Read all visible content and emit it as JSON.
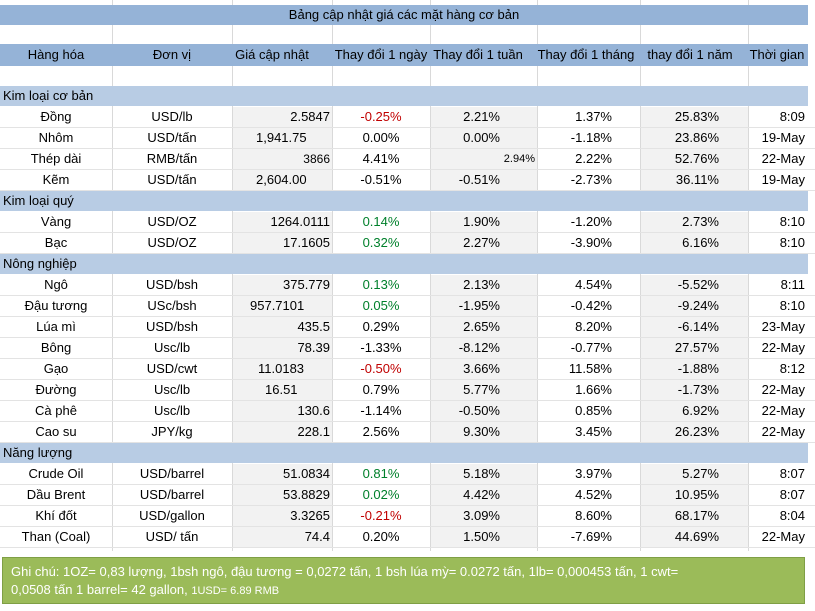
{
  "title": "Bảng cập nhật giá các mặt hàng cơ bản",
  "headers": [
    "Hàng hóa",
    "Đơn vị",
    "Giá cập nhật",
    "Thay đổi 1 ngày",
    "Thay đổi 1 tuần",
    "Thay đổi 1 tháng",
    "thay đổi 1 năm",
    "Thời gian"
  ],
  "sections": [
    {
      "name": "Kim loại cơ bản",
      "rows": [
        {
          "item": "Đồng",
          "unit": "USD/lb",
          "price": "2.5847",
          "day": "-0.25%",
          "week": "2.21%",
          "month": "1.37%",
          "year": "25.83%",
          "time": "8:09"
        },
        {
          "item": "Nhôm",
          "unit": "USD/tấn",
          "price": "1,941.75",
          "day": "0.00%",
          "week": "0.00%",
          "month": "-1.18%",
          "year": "23.86%",
          "time": "19-May"
        },
        {
          "item": "Thép dài",
          "unit": "RMB/tấn",
          "price": "3866",
          "day": "4.41%",
          "week": "2.94%",
          "month": "2.22%",
          "year": "52.76%",
          "time": "22-May"
        },
        {
          "item": "Kẽm",
          "unit": "USD/tấn",
          "price": "2,604.00",
          "day": "-0.51%",
          "week": "-0.51%",
          "month": "-2.73%",
          "year": "36.11%",
          "time": "19-May"
        }
      ]
    },
    {
      "name": "Kim loại quý",
      "rows": [
        {
          "item": "Vàng",
          "unit": "USD/OZ",
          "price": "1264.0111",
          "day": "0.14%",
          "week": "1.90%",
          "month": "-1.20%",
          "year": "2.73%",
          "time": "8:10"
        },
        {
          "item": "Bạc",
          "unit": "USD/OZ",
          "price": "17.1605",
          "day": "0.32%",
          "week": "2.27%",
          "month": "-3.90%",
          "year": "6.16%",
          "time": "8:10"
        }
      ]
    },
    {
      "name": "Nông nghiệp",
      "rows": [
        {
          "item": "Ngô",
          "unit": "USD/bsh",
          "price": "375.779",
          "day": "0.13%",
          "week": "2.13%",
          "month": "4.54%",
          "year": "-5.52%",
          "time": "8:11"
        },
        {
          "item": "Đậu tương",
          "unit": "USc/bsh",
          "price": "957.7101",
          "day": "0.05%",
          "week": "-1.95%",
          "month": "-0.42%",
          "year": "-9.24%",
          "time": "8:10"
        },
        {
          "item": "Lúa mì",
          "unit": "USD/bsh",
          "price": "435.5",
          "day": "0.29%",
          "week": "2.65%",
          "month": "8.20%",
          "year": "-6.14%",
          "time": "23-May"
        },
        {
          "item": "Bông",
          "unit": "Usc/lb",
          "price": "78.39",
          "day": "-1.33%",
          "week": "-8.12%",
          "month": "-0.77%",
          "year": "27.57%",
          "time": "22-May"
        },
        {
          "item": "Gạo",
          "unit": "USD/cwt",
          "price": "11.0183",
          "day": "-0.50%",
          "week": "3.66%",
          "month": "11.58%",
          "year": "-1.88%",
          "time": "8:12"
        },
        {
          "item": "Đường",
          "unit": "Usc/lb",
          "price": "16.51",
          "day": "0.79%",
          "week": "5.77%",
          "month": "1.66%",
          "year": "-1.73%",
          "time": "22-May"
        },
        {
          "item": "Cà phê",
          "unit": "Usc/lb",
          "price": "130.6",
          "day": "-1.14%",
          "week": "-0.50%",
          "month": "0.85%",
          "year": "6.92%",
          "time": "22-May"
        },
        {
          "item": "Cao su",
          "unit": "JPY/kg",
          "price": "228.1",
          "day": "2.56%",
          "week": "9.30%",
          "month": "3.45%",
          "year": "26.23%",
          "time": "22-May"
        }
      ]
    },
    {
      "name": "Năng lượng",
      "rows": [
        {
          "item": "Crude Oil",
          "unit": "USD/barrel",
          "price": "51.0834",
          "day": "0.81%",
          "week": "5.18%",
          "month": "3.97%",
          "year": "5.27%",
          "time": "8:07"
        },
        {
          "item": "Dầu Brent",
          "unit": "USD/barrel",
          "price": "53.8829",
          "day": "0.02%",
          "week": "4.42%",
          "month": "4.52%",
          "year": "10.95%",
          "time": "8:07"
        },
        {
          "item": "Khí đốt",
          "unit": "USD/gallon",
          "price": "3.3265",
          "day": "-0.21%",
          "week": "3.09%",
          "month": "8.60%",
          "year": "68.17%",
          "time": "8:04"
        },
        {
          "item": "Than (Coal)",
          "unit": "USD/ tấn",
          "price": "74.4",
          "day": "0.20%",
          "week": "1.50%",
          "month": "-7.69%",
          "year": "44.69%",
          "time": "22-May"
        }
      ]
    }
  ],
  "colors": {
    "header_band": "#95b3d7",
    "section_band": "#b8cce4",
    "negative": "#c00000",
    "positive": "#00802b",
    "note_bg": "#9bbb59"
  },
  "note_line1": "Ghi chú: 1OZ= 0,83 lượng,  1bsh ngô, đậu tương = 0,0272 tấn, 1 bsh lúa mỳ=  0.0272 tấn, 1lb= 0,000453 tấn, 1 cwt=",
  "note_line2": "0,0508 tấn 1 barrel= 42 gallon, ",
  "note_line2_small": "1USD= 6.89 RMB"
}
